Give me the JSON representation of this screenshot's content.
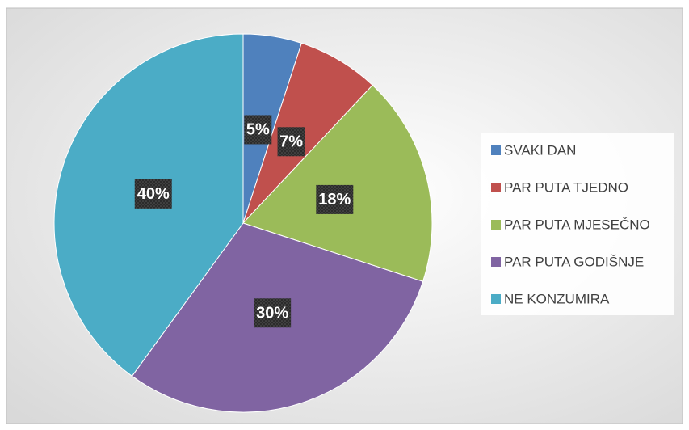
{
  "chart_data": {
    "type": "pie",
    "categories": [
      "SVAKI DAN",
      "PAR PUTA TJEDNO",
      "PAR PUTA MJESEČNO",
      "PAR PUTA GODIŠNJE",
      "NE KONZUMIRA"
    ],
    "values": [
      5,
      7,
      18,
      30,
      40
    ],
    "value_labels": [
      "5%",
      "7%",
      "18%",
      "30%",
      "40%"
    ],
    "colors": [
      "#4f81bd",
      "#c0504d",
      "#9bbb59",
      "#8064a2",
      "#4bacc6"
    ],
    "legend": "right"
  }
}
